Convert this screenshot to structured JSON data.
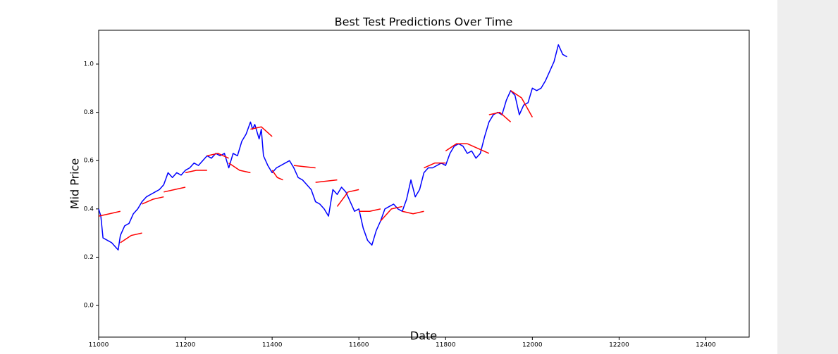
{
  "chart_data": {
    "type": "line",
    "title": "Best Test Predictions Over Time",
    "xlabel": "Date",
    "ylabel": "Mid Price",
    "xlim": [
      11000,
      12500
    ],
    "ylim": [
      -0.131,
      1.14
    ],
    "xticks": [
      11000,
      11200,
      11400,
      11600,
      11800,
      12000,
      12200,
      12400
    ],
    "yticks": [
      {
        "value": 0,
        "label": "0.0"
      },
      0.2,
      0.4,
      0.6,
      0.8,
      {
        "value": 1,
        "label": "1.0"
      }
    ],
    "series": [
      {
        "color": "#0000ff",
        "x": [
          11000,
          11005,
          11010,
          11020,
          11030,
          11040,
          11045,
          11050,
          11060,
          11070,
          11080,
          11090,
          11100,
          11110,
          11120,
          11130,
          11140,
          11150,
          11160,
          11170,
          11180,
          11190,
          11200,
          11210,
          11220,
          11230,
          11240,
          11250,
          11260,
          11270,
          11280,
          11290,
          11300,
          11310,
          11320,
          11330,
          11340,
          11350,
          11355,
          11360,
          11370,
          11375,
          11380,
          11390,
          11400,
          11410,
          11420,
          11430,
          11440,
          11450,
          11460,
          11470,
          11480,
          11490,
          11500,
          11510,
          11520,
          11530,
          11540,
          11550,
          11560,
          11570,
          11580,
          11590,
          11600,
          11610,
          11620,
          11630,
          11640,
          11650,
          11660,
          11670,
          11680,
          11690,
          11700,
          11710,
          11720,
          11730,
          11740,
          11750,
          11760,
          11770,
          11780,
          11790,
          11800,
          11810,
          11820,
          11830,
          11840,
          11850,
          11860,
          11870,
          11880,
          11890,
          11900,
          11910,
          11920,
          11930,
          11940,
          11950,
          11960,
          11970,
          11980,
          11990,
          12000,
          12010,
          12020,
          12030,
          12040,
          12050,
          12060,
          12070,
          12080
        ],
        "values": [
          0.4,
          0.37,
          0.28,
          0.27,
          0.26,
          0.24,
          0.23,
          0.29,
          0.33,
          0.34,
          0.38,
          0.4,
          0.43,
          0.45,
          0.46,
          0.47,
          0.48,
          0.5,
          0.55,
          0.53,
          0.55,
          0.54,
          0.56,
          0.57,
          0.59,
          0.58,
          0.6,
          0.62,
          0.61,
          0.63,
          0.62,
          0.63,
          0.57,
          0.63,
          0.62,
          0.68,
          0.71,
          0.76,
          0.73,
          0.75,
          0.69,
          0.73,
          0.62,
          0.58,
          0.55,
          0.57,
          0.58,
          0.59,
          0.6,
          0.57,
          0.53,
          0.52,
          0.5,
          0.48,
          0.43,
          0.42,
          0.4,
          0.37,
          0.48,
          0.46,
          0.49,
          0.47,
          0.43,
          0.39,
          0.4,
          0.32,
          0.27,
          0.25,
          0.31,
          0.35,
          0.4,
          0.41,
          0.42,
          0.4,
          0.39,
          0.44,
          0.52,
          0.45,
          0.48,
          0.55,
          0.57,
          0.57,
          0.58,
          0.59,
          0.58,
          0.63,
          0.66,
          0.67,
          0.66,
          0.63,
          0.64,
          0.61,
          0.63,
          0.7,
          0.76,
          0.79,
          0.8,
          0.79,
          0.85,
          0.89,
          0.87,
          0.79,
          0.83,
          0.84,
          0.9,
          0.89,
          0.9,
          0.93,
          0.97,
          1.01,
          1.08,
          1.04,
          1.03
        ]
      },
      {
        "color": "#ff0000",
        "x": [
          11000,
          11025,
          11050,
          11050,
          11050,
          11075,
          11100,
          11100,
          11100,
          11125,
          11150,
          11150,
          11150,
          11175,
          11200,
          11200,
          11200,
          11225,
          11250,
          11250,
          11250,
          11275,
          11300,
          11300,
          11300,
          11325,
          11350,
          11350,
          11350,
          11375,
          11400,
          11400,
          11400,
          11412,
          11425,
          11425,
          11450,
          11475,
          11500,
          11500,
          11500,
          11525,
          11550,
          11550,
          11550,
          11575,
          11600,
          11600,
          11600,
          11625,
          11650,
          11650,
          11650,
          11675,
          11700,
          11700,
          11700,
          11725,
          11750,
          11750,
          11750,
          11775,
          11800,
          11800,
          11800,
          11825,
          11850,
          11850,
          11850,
          11875,
          11900,
          11900,
          11900,
          11925,
          11950,
          11950,
          11950,
          11975,
          12000
        ],
        "values": [
          0.37,
          0.38,
          0.39,
          null,
          0.26,
          0.29,
          0.3,
          null,
          0.42,
          0.44,
          0.45,
          null,
          0.47,
          0.48,
          0.49,
          null,
          0.55,
          0.56,
          0.56,
          null,
          0.62,
          0.63,
          0.61,
          null,
          0.59,
          0.56,
          0.55,
          null,
          0.73,
          0.74,
          0.7,
          null,
          0.56,
          0.53,
          0.52,
          null,
          0.58,
          0.575,
          0.57,
          null,
          0.51,
          0.515,
          0.52,
          null,
          0.41,
          0.47,
          0.48,
          null,
          0.39,
          0.39,
          0.4,
          null,
          0.35,
          0.4,
          0.41,
          null,
          0.39,
          0.38,
          0.39,
          null,
          0.57,
          0.59,
          0.59,
          null,
          0.64,
          0.67,
          0.67,
          null,
          0.67,
          0.65,
          0.63,
          null,
          0.79,
          0.8,
          0.76,
          null,
          0.89,
          0.86,
          0.78
        ]
      }
    ]
  }
}
